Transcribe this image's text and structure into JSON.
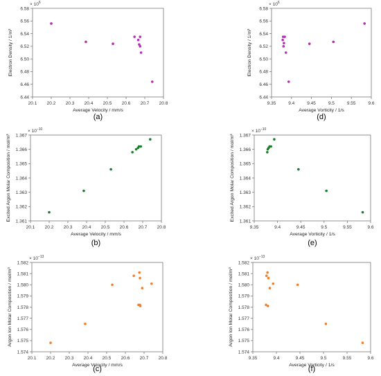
{
  "chart_data": [
    {
      "panel_label": "(a)",
      "type": "scatter",
      "title": "",
      "xlabel": "Average Velocity / mm/s",
      "ylabel": "Electron Density / 1/m³",
      "multiplier": "× 10",
      "multiplier_exp": "6",
      "xlim": [
        20.1,
        20.8
      ],
      "ylim": [
        6.44,
        6.58
      ],
      "xticks": [
        "20.1",
        "20.2",
        "20.3",
        "20.4",
        "20.5",
        "20.6",
        "20.7",
        "20.8"
      ],
      "yticks": [
        "6.44",
        "6.46",
        "6.48",
        "6.50",
        "6.52",
        "6.54",
        "6.56",
        "6.58"
      ],
      "color": "#b82db5",
      "x": [
        20.2,
        20.385,
        20.53,
        20.645,
        20.665,
        20.67,
        20.675,
        20.675,
        20.68,
        20.74
      ],
      "y": [
        6.556,
        6.527,
        6.524,
        6.535,
        6.53,
        6.523,
        6.52,
        6.535,
        6.51,
        6.464
      ]
    },
    {
      "panel_label": "(d)",
      "type": "scatter",
      "title": "",
      "xlabel": "Average Vorticity / 1/s",
      "ylabel": "Electron Density / 1/m³",
      "multiplier": "× 10",
      "multiplier_exp": "6",
      "xlim": [
        9.35,
        9.6
      ],
      "ylim": [
        6.44,
        6.58
      ],
      "xticks": [
        "9.35",
        "9.4",
        "9.45",
        "9.5",
        "9.55",
        "9.6"
      ],
      "yticks": [
        "6.44",
        "6.46",
        "6.48",
        "6.50",
        "6.52",
        "6.54",
        "6.56",
        "6.58"
      ],
      "color": "#b82db5",
      "x": [
        9.378,
        9.379,
        9.38,
        9.381,
        9.383,
        9.386,
        9.393,
        9.445,
        9.505,
        9.583
      ],
      "y": [
        6.53,
        6.535,
        6.52,
        6.525,
        6.535,
        6.51,
        6.464,
        6.524,
        6.527,
        6.556
      ]
    },
    {
      "panel_label": "(b)",
      "type": "scatter",
      "title": "",
      "xlabel": "Average Velocity / mm/s",
      "ylabel": "Excited Argon Molar Composition / mol/m³",
      "multiplier": "× 10",
      "multiplier_exp": "−10",
      "xlim": [
        20.1,
        20.8
      ],
      "ylim": [
        1.361,
        1.367
      ],
      "xticks": [
        "20.1",
        "20.2",
        "20.3",
        "20.4",
        "20.5",
        "20.6",
        "20.7",
        "20.8"
      ],
      "yticks": [
        "1.361",
        "1.362",
        "1.363",
        "1.364",
        "1.365",
        "1.366",
        "1.367"
      ],
      "color": "#1e7b30",
      "x": [
        20.2,
        20.385,
        20.53,
        20.645,
        20.665,
        20.675,
        20.68,
        20.69,
        20.74
      ],
      "y": [
        1.3616,
        1.3631,
        1.3646,
        1.3658,
        1.366,
        1.3661,
        1.3662,
        1.3662,
        1.3667
      ]
    },
    {
      "panel_label": "(e)",
      "type": "scatter",
      "title": "",
      "xlabel": "Average Vorticity /  1/s",
      "ylabel": "Excited Argon Molar Composition / mol/m³",
      "multiplier": "× 10",
      "multiplier_exp": "−10",
      "xlim": [
        9.35,
        9.6
      ],
      "ylim": [
        1.361,
        1.367
      ],
      "xticks": [
        "9.35",
        "9.4",
        "9.45",
        "9.5",
        "9.55",
        "9.6"
      ],
      "yticks": [
        "1.361",
        "1.362",
        "1.363",
        "1.364",
        "1.365",
        "1.366",
        "1.367"
      ],
      "color": "#1e7b30",
      "x": [
        9.378,
        9.379,
        9.381,
        9.383,
        9.386,
        9.393,
        9.445,
        9.505,
        9.583
      ],
      "y": [
        1.3658,
        1.366,
        1.3661,
        1.3662,
        1.3662,
        1.3667,
        1.3646,
        1.3631,
        1.3616
      ]
    },
    {
      "panel_label": "(c)",
      "type": "scatter",
      "title": "",
      "xlabel": "Average Velocity / mm/s",
      "ylabel": "Argon Ion Molar Composition / mol/m³",
      "multiplier": "× 10",
      "multiplier_exp": "−13",
      "xlim": [
        20.1,
        20.8
      ],
      "ylim": [
        1.574,
        1.582
      ],
      "xticks": [
        "20.1",
        "20.2",
        "20.3",
        "20.4",
        "20.5",
        "20.6",
        "20.7",
        "20.8"
      ],
      "yticks": [
        "1.574",
        "1.575",
        "1.576",
        "1.577",
        "1.578",
        "1.579",
        "1.580",
        "1.581",
        "1.582"
      ],
      "color": "#f07f2c",
      "x": [
        20.2,
        20.385,
        20.53,
        20.645,
        20.67,
        20.675,
        20.678,
        20.678,
        20.68,
        20.69,
        20.74
      ],
      "y": [
        1.5748,
        1.5765,
        1.58,
        1.5808,
        1.5782,
        1.5811,
        1.5806,
        1.5782,
        1.5781,
        1.5797,
        1.5801
      ]
    },
    {
      "panel_label": "(f)",
      "type": "scatter",
      "title": "",
      "xlabel": "Average Vorticity / 1/s",
      "ylabel": "Argon Ion Molar Composition / mol/m³",
      "multiplier": "× 10",
      "multiplier_exp": "−13",
      "xlim": [
        9.35,
        9.6
      ],
      "ylim": [
        1.574,
        1.582
      ],
      "xticks": [
        "9.35",
        "9.4",
        "9.45",
        "9.5",
        "9.55",
        "9.6"
      ],
      "yticks": [
        "1.574",
        "1.575",
        "1.576",
        "1.577",
        "1.578",
        "1.579",
        "1.580",
        "1.581",
        "1.582"
      ],
      "color": "#f07f2c",
      "x": [
        9.378,
        9.379,
        9.381,
        9.382,
        9.383,
        9.386,
        9.393,
        9.445,
        9.505,
        9.583
      ],
      "y": [
        1.5782,
        1.5808,
        1.5811,
        1.5781,
        1.5806,
        1.5797,
        1.5801,
        1.58,
        1.5765,
        1.5748
      ]
    }
  ]
}
